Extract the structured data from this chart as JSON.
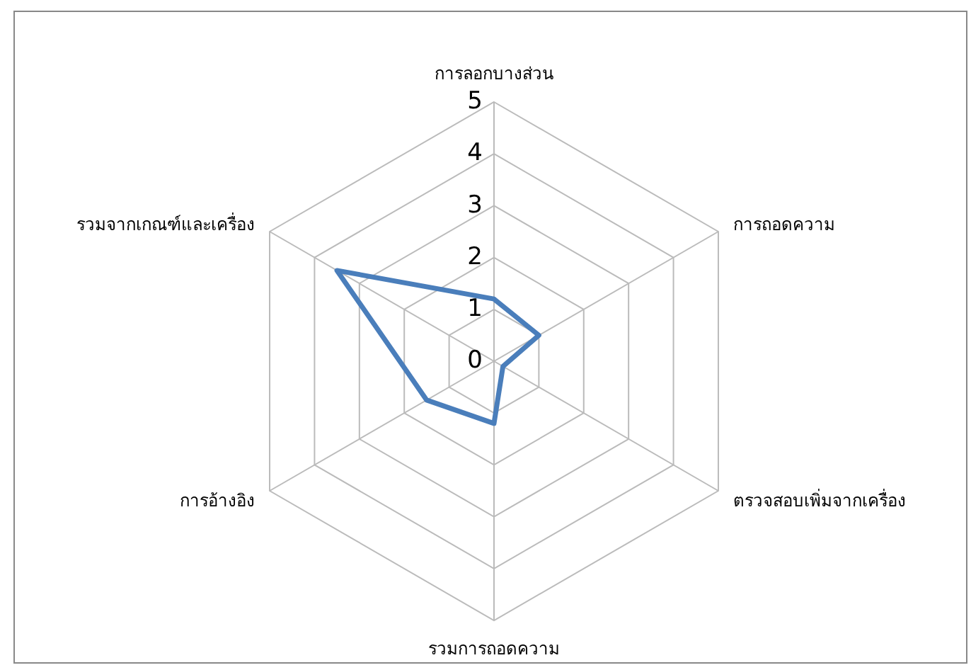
{
  "chart_data": {
    "type": "radar",
    "categories": [
      "การลอกบางส่วน",
      "การถอดความ",
      "ตรวจสอบเพิ่มจากเครื่อง",
      "รวมการถอดความ",
      "การอ้างอิง",
      "รวมจากเกณฑ์และเครื่อง"
    ],
    "series": [
      {
        "color": "#4a7ebb",
        "values": [
          1.2,
          1,
          0.2,
          1.2,
          1.5,
          3.5
        ]
      }
    ],
    "ylim": [
      0,
      5
    ],
    "yticks": [
      0,
      1,
      2,
      3,
      4,
      5
    ],
    "grid": true,
    "marker": "none",
    "line_style": "solid"
  }
}
